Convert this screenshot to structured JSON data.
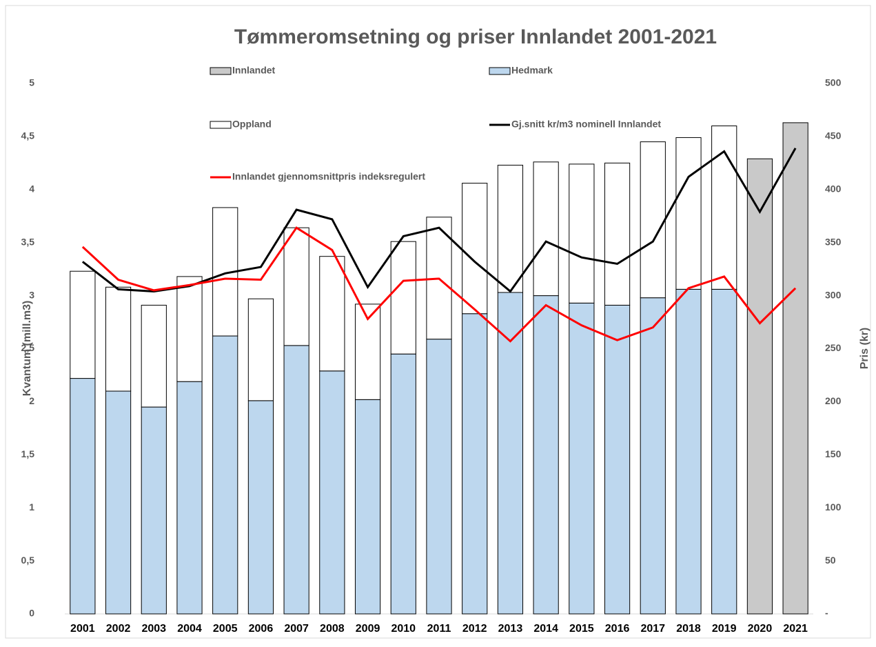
{
  "chart_data": {
    "type": "bar",
    "title": "Tømmeromsetning og priser Innlandet 2001-2021",
    "ylabel": "Kvantum (mill.m3)",
    "y2label": "Pris (kr)",
    "categories": [
      "2001",
      "2002",
      "2003",
      "2004",
      "2005",
      "2006",
      "2007",
      "2008",
      "2009",
      "2010",
      "2011",
      "2012",
      "2013",
      "2014",
      "2015",
      "2016",
      "2017",
      "2018",
      "2019",
      "2020",
      "2021"
    ],
    "series": [
      {
        "name": "Innlandet",
        "type": "bar",
        "color": "#c9c9c9",
        "values": [
          null,
          null,
          null,
          null,
          null,
          null,
          null,
          null,
          null,
          null,
          null,
          null,
          null,
          null,
          null,
          null,
          null,
          null,
          null,
          4.29,
          4.63
        ]
      },
      {
        "name": "Hedmark",
        "type": "bar",
        "color": "#bdd7ee",
        "values": [
          2.22,
          2.1,
          1.95,
          2.19,
          2.62,
          2.01,
          2.53,
          2.29,
          2.02,
          2.45,
          2.59,
          2.83,
          3.03,
          3.0,
          2.93,
          2.91,
          2.98,
          3.06,
          3.06,
          null,
          null
        ]
      },
      {
        "name": "Oppland",
        "type": "bar",
        "color": "#ffffff",
        "values": [
          1.01,
          0.98,
          0.96,
          0.99,
          1.21,
          0.96,
          1.11,
          1.08,
          0.9,
          1.06,
          1.15,
          1.23,
          1.2,
          1.26,
          1.31,
          1.34,
          1.47,
          1.43,
          1.54,
          null,
          null
        ]
      },
      {
        "name": "Gj.snitt kr/m3 nominell Innlandet",
        "type": "line",
        "axis": "y2",
        "color": "#000000",
        "values": [
          332,
          306,
          304,
          309,
          321,
          327,
          381,
          372,
          308,
          356,
          364,
          332,
          304,
          351,
          336,
          330,
          351,
          412,
          436,
          379,
          439
        ]
      },
      {
        "name": "Innlandet gjennomsnittpris indeksregulert",
        "type": "line",
        "axis": "y2",
        "color": "#ff0000",
        "values": [
          346,
          315,
          305,
          310,
          316,
          315,
          364,
          343,
          278,
          314,
          316,
          287,
          257,
          291,
          272,
          258,
          270,
          307,
          318,
          274,
          307
        ]
      }
    ],
    "ylim": [
      0,
      5
    ],
    "yticks": [
      0,
      {
        "value": 0.5,
        "label": "0,5"
      },
      1,
      {
        "value": 1.5,
        "label": "1,5"
      },
      2,
      {
        "value": 2.5,
        "label": "2,5"
      },
      3,
      {
        "value": 3.5,
        "label": "3,5"
      },
      4,
      {
        "value": 4.5,
        "label": "4,5"
      },
      5
    ],
    "y2lim": [
      0,
      500
    ],
    "y2ticks": [
      {
        "value": 0,
        "label": "-"
      },
      50,
      100,
      150,
      200,
      250,
      300,
      350,
      400,
      450,
      500
    ],
    "grid": false
  }
}
